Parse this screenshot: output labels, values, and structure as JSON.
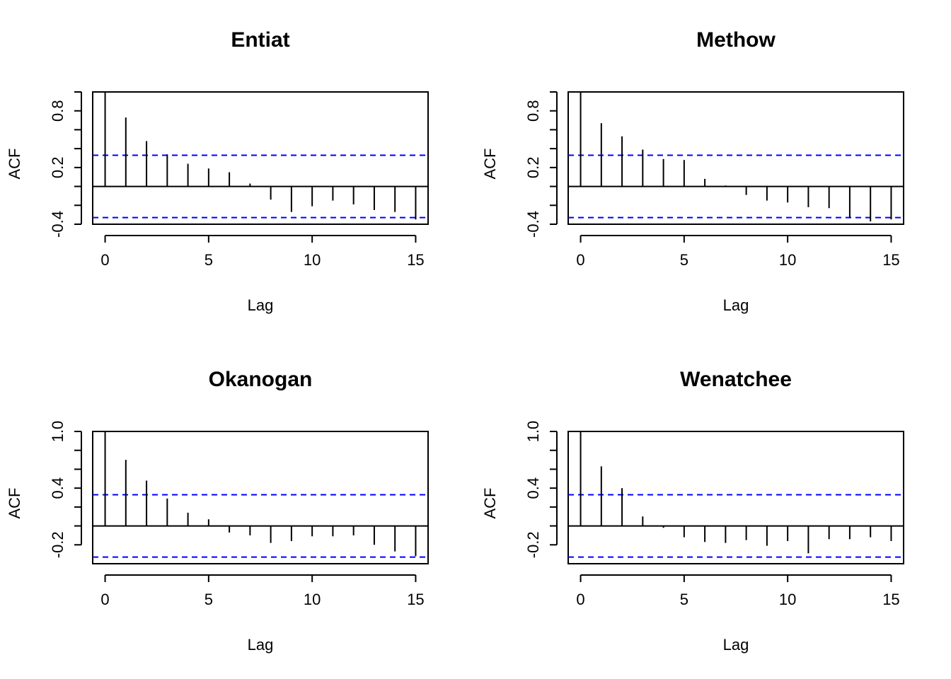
{
  "colors": {
    "bars": "#000000",
    "confidence_band": "#0000ff",
    "axes": "#000000"
  },
  "chart_data": [
    {
      "type": "bar",
      "title": "Entiat",
      "xlabel": "Lag",
      "ylabel": "ACF",
      "xlim": [
        -0.6,
        15.6
      ],
      "ylim": [
        -0.4,
        1.0
      ],
      "xticks": [
        0,
        5,
        10,
        15
      ],
      "xtick_labels": [
        "0",
        "5",
        "10",
        "15"
      ],
      "yticks": [
        -0.4,
        -0.2,
        0.0,
        0.2,
        0.4,
        0.6,
        0.8,
        1.0
      ],
      "ytick_labels": [
        "-0.4",
        "",
        "",
        "0.2",
        "",
        "",
        "0.8",
        ""
      ],
      "lags": [
        0,
        1,
        2,
        3,
        4,
        5,
        6,
        7,
        8,
        9,
        10,
        11,
        12,
        13,
        14,
        15
      ],
      "values": [
        1.0,
        0.73,
        0.48,
        0.34,
        0.24,
        0.19,
        0.15,
        0.03,
        -0.14,
        -0.27,
        -0.21,
        -0.15,
        -0.19,
        -0.25,
        -0.27,
        -0.35
      ],
      "confidence_bound": 0.33
    },
    {
      "type": "bar",
      "title": "Methow",
      "xlabel": "Lag",
      "ylabel": "ACF",
      "xlim": [
        -0.6,
        15.6
      ],
      "ylim": [
        -0.4,
        1.0
      ],
      "xticks": [
        0,
        5,
        10,
        15
      ],
      "xtick_labels": [
        "0",
        "5",
        "10",
        "15"
      ],
      "yticks": [
        -0.4,
        -0.2,
        0.0,
        0.2,
        0.4,
        0.6,
        0.8,
        1.0
      ],
      "ytick_labels": [
        "-0.4",
        "",
        "",
        "0.2",
        "",
        "",
        "0.8",
        ""
      ],
      "lags": [
        0,
        1,
        2,
        3,
        4,
        5,
        6,
        7,
        8,
        9,
        10,
        11,
        12,
        13,
        14,
        15
      ],
      "values": [
        1.0,
        0.67,
        0.53,
        0.39,
        0.29,
        0.28,
        0.08,
        0.01,
        -0.09,
        -0.15,
        -0.17,
        -0.22,
        -0.23,
        -0.33,
        -0.37,
        -0.35
      ],
      "confidence_bound": 0.33
    },
    {
      "type": "bar",
      "title": "Okanogan",
      "xlabel": "Lag",
      "ylabel": "ACF",
      "xlim": [
        -0.6,
        15.6
      ],
      "ylim": [
        -0.4,
        1.0
      ],
      "xticks": [
        0,
        5,
        10,
        15
      ],
      "xtick_labels": [
        "0",
        "5",
        "10",
        "15"
      ],
      "yticks": [
        -0.2,
        0.0,
        0.2,
        0.4,
        0.6,
        0.8,
        1.0
      ],
      "ytick_labels": [
        "-0.2",
        "",
        "",
        "0.4",
        "",
        "",
        "1.0"
      ],
      "lags": [
        0,
        1,
        2,
        3,
        4,
        5,
        6,
        7,
        8,
        9,
        10,
        11,
        12,
        13,
        14,
        15
      ],
      "values": [
        1.0,
        0.7,
        0.48,
        0.29,
        0.14,
        0.07,
        -0.07,
        -0.1,
        -0.18,
        -0.16,
        -0.11,
        -0.11,
        -0.1,
        -0.2,
        -0.27,
        -0.32
      ],
      "confidence_bound": 0.33
    },
    {
      "type": "bar",
      "title": "Wenatchee",
      "xlabel": "Lag",
      "ylabel": "ACF",
      "xlim": [
        -0.6,
        15.6
      ],
      "ylim": [
        -0.4,
        1.0
      ],
      "xticks": [
        0,
        5,
        10,
        15
      ],
      "xtick_labels": [
        "0",
        "5",
        "10",
        "15"
      ],
      "yticks": [
        -0.2,
        0.0,
        0.2,
        0.4,
        0.6,
        0.8,
        1.0
      ],
      "ytick_labels": [
        "-0.2",
        "",
        "",
        "0.4",
        "",
        "",
        "1.0"
      ],
      "lags": [
        0,
        1,
        2,
        3,
        4,
        5,
        6,
        7,
        8,
        9,
        10,
        11,
        12,
        13,
        14,
        15
      ],
      "values": [
        1.0,
        0.63,
        0.4,
        0.1,
        -0.02,
        -0.12,
        -0.17,
        -0.18,
        -0.15,
        -0.21,
        -0.16,
        -0.29,
        -0.14,
        -0.14,
        -0.12,
        -0.16
      ],
      "confidence_bound": 0.33
    }
  ]
}
